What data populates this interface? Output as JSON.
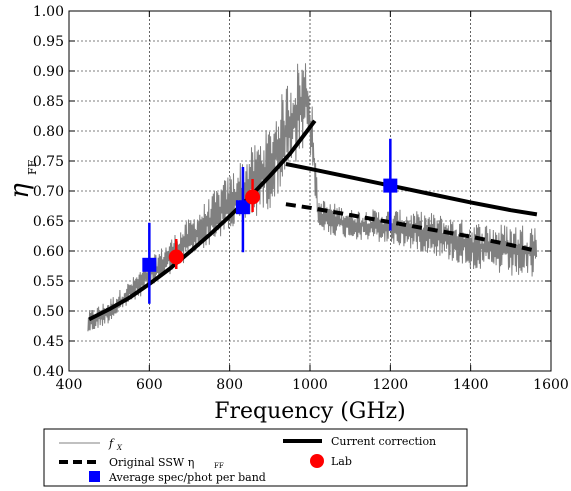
{
  "chart_data": {
    "type": "line",
    "xlabel": "Frequency (GHz)",
    "ylabel": "η",
    "ylabel_sub": "FF",
    "xlim": [
      400,
      1600
    ],
    "ylim": [
      0.4,
      1.0
    ],
    "x_ticks": [
      400,
      600,
      800,
      1000,
      1200,
      1400,
      1600
    ],
    "y_ticks": [
      0.4,
      0.45,
      0.5,
      0.55,
      0.6,
      0.65,
      0.7,
      0.75,
      0.8,
      0.85,
      0.9,
      0.95,
      1.0
    ],
    "x_tick_labels": [
      "400",
      "600",
      "800",
      "1000",
      "1200",
      "1400",
      "1600"
    ],
    "y_tick_labels": [
      "0.40",
      "0.45",
      "0.50",
      "0.55",
      "0.60",
      "0.65",
      "0.70",
      "0.75",
      "0.80",
      "0.85",
      "0.90",
      "0.95",
      "1.00"
    ],
    "grid": true,
    "legend_position": "below",
    "series": [
      {
        "name": "f_X",
        "legend_label": "f",
        "legend_sub": "X",
        "style": "noisy-line",
        "color": "#808080",
        "x": [
          447,
          500,
          550,
          600,
          650,
          700,
          750,
          800,
          850,
          900,
          940,
          970,
          990,
          1005,
          1020,
          1100,
          1200,
          1300,
          1400,
          1500,
          1565
        ],
        "y": [
          0.48,
          0.5,
          0.53,
          0.56,
          0.59,
          0.62,
          0.65,
          0.68,
          0.71,
          0.74,
          0.8,
          0.83,
          0.85,
          0.8,
          0.66,
          0.645,
          0.64,
          0.63,
          0.61,
          0.6,
          0.6
        ],
        "noise_amplitude": [
          0.02,
          0.02,
          0.02,
          0.025,
          0.03,
          0.035,
          0.04,
          0.05,
          0.06,
          0.07,
          0.08,
          0.09,
          0.08,
          0.05,
          0.03,
          0.025,
          0.03,
          0.035,
          0.04,
          0.045,
          0.05
        ]
      },
      {
        "name": "Original SSW η_FF",
        "legend_label": "Original SSW η",
        "legend_sub": "FF",
        "style": "dashed",
        "color": "#000000",
        "x": [
          940,
          1000,
          1100,
          1200,
          1300,
          1400,
          1500,
          1565
        ],
        "y": [
          0.678,
          0.672,
          0.66,
          0.648,
          0.636,
          0.624,
          0.61,
          0.6
        ]
      },
      {
        "name": "Current correction",
        "legend_label": "Current correction",
        "style": "solid-thick",
        "color": "#000000",
        "segments": [
          {
            "x": [
              450,
              500,
              550,
              600,
              650,
              700,
              750,
              800,
              850,
              900,
              950,
              1012
            ],
            "y": [
              0.486,
              0.503,
              0.522,
              0.545,
              0.57,
              0.598,
              0.627,
              0.658,
              0.69,
              0.725,
              0.762,
              0.817
            ]
          },
          {
            "x": [
              940,
              1000,
              1100,
              1200,
              1300,
              1400,
              1500,
              1565
            ],
            "y": [
              0.745,
              0.737,
              0.723,
              0.709,
              0.695,
              0.681,
              0.668,
              0.661
            ]
          }
        ]
      }
    ],
    "points": [
      {
        "name": "Average spec/phot per band",
        "legend_label": "Average spec/phot per band",
        "marker": "square",
        "color": "#0000ff",
        "data": [
          {
            "x": 600,
            "y": 0.577,
            "err_lo": 0.065,
            "err_hi": 0.07
          },
          {
            "x": 833,
            "y": 0.673,
            "err_lo": 0.075,
            "err_hi": 0.067
          },
          {
            "x": 1200,
            "y": 0.709,
            "err_lo": 0.075,
            "err_hi": 0.078
          }
        ]
      },
      {
        "name": "Lab",
        "legend_label": "Lab",
        "marker": "circle",
        "color": "#ff0000",
        "data": [
          {
            "x": 667,
            "y": 0.59,
            "err_lo": 0.02,
            "err_hi": 0.03
          },
          {
            "x": 857,
            "y": 0.69,
            "err_lo": 0.025,
            "err_hi": 0.03
          }
        ]
      }
    ]
  }
}
